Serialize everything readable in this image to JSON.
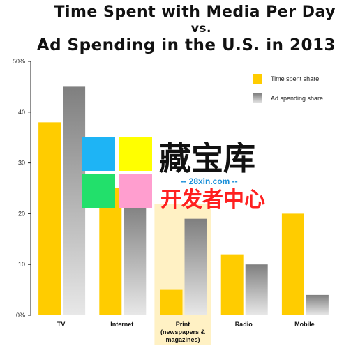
{
  "header": {
    "line1": "Time Spent with Media Per Day",
    "line2": "vs.",
    "line3": "Ad Spending in the U.S. in 2013"
  },
  "chart_data": {
    "type": "bar",
    "title": "Time Spent with Media Per Day vs. Ad Spending in the U.S. in 2013",
    "categories": [
      "TV",
      "Internet",
      "Print (newspapers & magazines)",
      "Radio",
      "Mobile"
    ],
    "category_lines": [
      [
        "TV"
      ],
      [
        "Internet"
      ],
      [
        "Print",
        "(newspapers &",
        "magazines)"
      ],
      [
        "Radio"
      ],
      [
        "Mobile"
      ]
    ],
    "series": [
      {
        "name": "Time spent share",
        "values": [
          38,
          25,
          5,
          12,
          20
        ],
        "color": "#FFCC00"
      },
      {
        "name": "Ad spending share",
        "values": [
          45,
          22,
          19,
          10,
          4
        ],
        "color": "#8c8c8c"
      }
    ],
    "ylim": [
      0,
      50
    ],
    "yticks": [
      0,
      10,
      20,
      30,
      40,
      50
    ],
    "ytick_labels": [
      "0%",
      "10",
      "20",
      "30",
      "40",
      "50%"
    ],
    "highlight_category": "Print (newspapers & magazines)",
    "highlight_color": "#FFF1C4",
    "legend_position": "top-right",
    "grid": false
  },
  "watermark": {
    "main_text": "藏宝库",
    "url_text": "-- 28xin.com --",
    "sub_text": "开发者中心",
    "tile_colors": [
      "#1EB4F5",
      "#FFFF00",
      "#22E06B",
      "#FF9ECF"
    ]
  }
}
